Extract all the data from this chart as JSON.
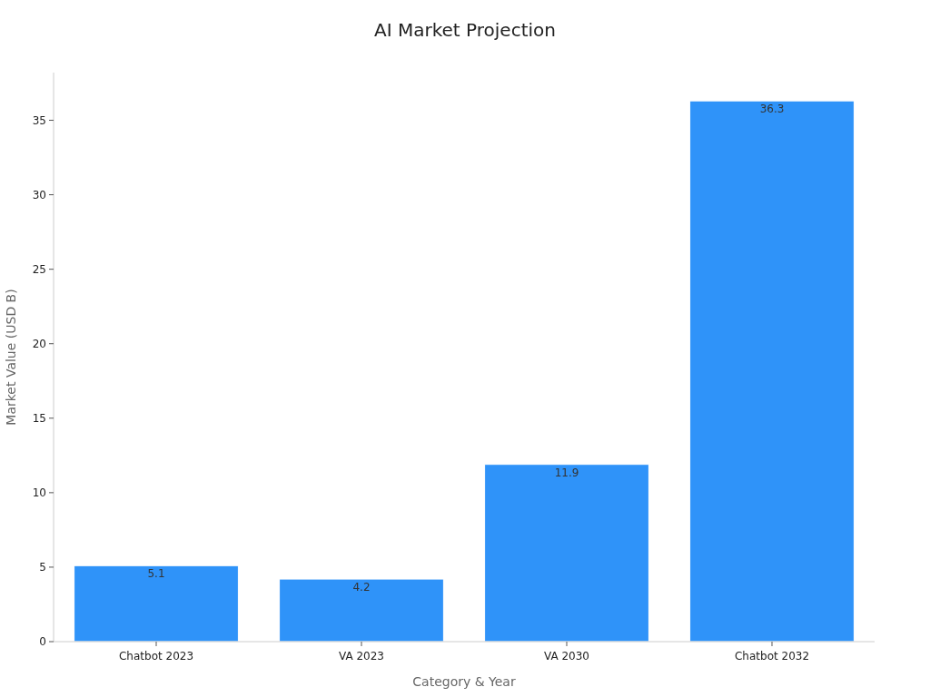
{
  "chart_data": {
    "type": "bar",
    "title": "AI Market Projection",
    "xlabel": "Category & Year",
    "ylabel": "Market Value (USD B)",
    "categories": [
      "Chatbot 2023",
      "VA 2023",
      "VA 2030",
      "Chatbot 2032"
    ],
    "values": [
      5.1,
      4.2,
      11.9,
      36.3
    ],
    "color": "#2f93f9",
    "ylim": [
      0,
      38.2
    ],
    "yticks": [
      0,
      5,
      10,
      15,
      20,
      25,
      30,
      35
    ],
    "grid": false,
    "data_labels": true
  }
}
